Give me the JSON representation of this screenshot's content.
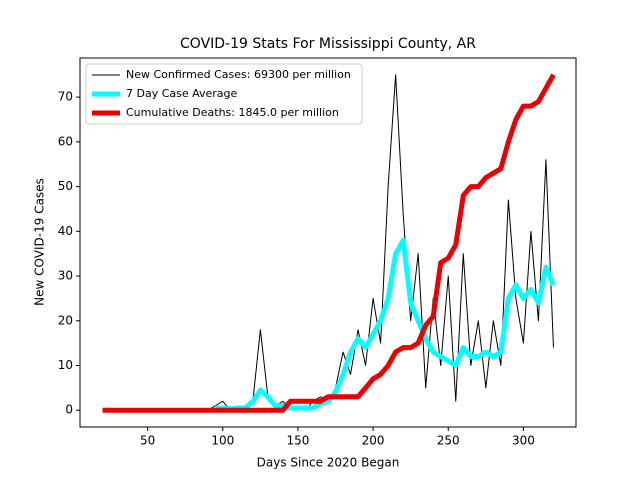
{
  "chart_data": {
    "type": "line",
    "title": "COVID-19 Stats For Mississippi County, AR",
    "xlabel": "Days Since 2020 Began",
    "ylabel": "New COVID-19 Cases",
    "x": [
      20,
      25,
      30,
      35,
      40,
      45,
      50,
      55,
      60,
      65,
      70,
      75,
      80,
      85,
      90,
      95,
      100,
      105,
      110,
      115,
      120,
      125,
      130,
      135,
      140,
      145,
      150,
      155,
      160,
      165,
      170,
      175,
      180,
      185,
      190,
      195,
      200,
      205,
      210,
      215,
      220,
      225,
      230,
      235,
      240,
      245,
      250,
      255,
      260,
      265,
      270,
      275,
      280,
      285,
      290,
      295,
      300,
      305,
      310,
      315,
      320
    ],
    "series": [
      {
        "name": "New Confirmed Cases: 69300 per million",
        "color": "#000000",
        "width": 1,
        "values": [
          0,
          0,
          0,
          0,
          0,
          0,
          0,
          0,
          0,
          0,
          0,
          0,
          0,
          0,
          0,
          1,
          2,
          0,
          1,
          0,
          2,
          18,
          3,
          1,
          2,
          0,
          1,
          0,
          2,
          3,
          2,
          5,
          13,
          8,
          18,
          10,
          25,
          15,
          50,
          75,
          44,
          20,
          35,
          5,
          25,
          10,
          30,
          2,
          35,
          10,
          20,
          5,
          20,
          10,
          47,
          25,
          15,
          40,
          20,
          56,
          14
        ]
      },
      {
        "name": "7 Day Case Average",
        "color": "#00ffff",
        "width": 5,
        "values": [
          null,
          null,
          null,
          null,
          null,
          null,
          null,
          null,
          null,
          null,
          null,
          null,
          null,
          null,
          null,
          0.5,
          0.5,
          0.3,
          0.5,
          0.5,
          2,
          4.5,
          3,
          1,
          1,
          0.5,
          0.5,
          0.5,
          0.5,
          1.5,
          2,
          4,
          8,
          13,
          16,
          14,
          17,
          20,
          25,
          35,
          38,
          24,
          20,
          16,
          13,
          12,
          11,
          10,
          14,
          12,
          12,
          13,
          12,
          13,
          25,
          28,
          25,
          27,
          24,
          32,
          28
        ]
      },
      {
        "name": "Cumulative Deaths: 1845.0 per million",
        "color": "#ee0000",
        "width": 5,
        "values": [
          0,
          0,
          0,
          0,
          0,
          0,
          0,
          0,
          0,
          0,
          0,
          0,
          0,
          0,
          0,
          0,
          0,
          0,
          0,
          0,
          0,
          0,
          0,
          0,
          0,
          2,
          2,
          2,
          2,
          2,
          3,
          3,
          3,
          3,
          3,
          5,
          7,
          8,
          10,
          13,
          14,
          14,
          15,
          19,
          21,
          33,
          34,
          37,
          48,
          50,
          50,
          52,
          53,
          54,
          60,
          65,
          68,
          68,
          69,
          72,
          75
        ]
      }
    ],
    "xlim": [
      5,
      335
    ],
    "ylim": [
      -3.75,
      78.75
    ],
    "xticks": [
      50,
      100,
      150,
      200,
      250,
      300
    ],
    "yticks": [
      0,
      10,
      20,
      30,
      40,
      50,
      60,
      70
    ],
    "legend": "upper left"
  }
}
